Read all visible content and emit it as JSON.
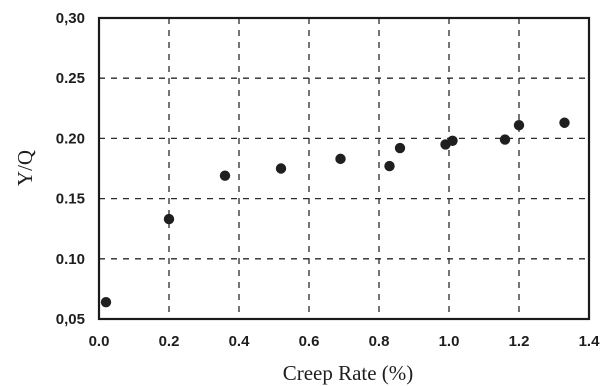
{
  "chart_data": {
    "type": "scatter",
    "xlabel": "Creep Rate (%)",
    "ylabel": "Y/Q",
    "xlim": [
      0.0,
      1.4
    ],
    "ylim": [
      0.05,
      0.3
    ],
    "xticks": [
      0.0,
      0.2,
      0.4,
      0.6,
      0.8,
      1.0,
      1.2,
      1.4
    ],
    "xtick_labels": [
      "0.0",
      "0.2",
      "0.4",
      "0.6",
      "0.8",
      "1.0",
      "1.2",
      "1.4"
    ],
    "yticks": [
      0.05,
      0.1,
      0.15,
      0.2,
      0.25,
      0.3
    ],
    "ytick_labels": [
      "0,05",
      "0.10",
      "0.15",
      "0.20",
      "0.25",
      "0,30"
    ],
    "grid": true,
    "point_color": "#1f1f1f",
    "series": [
      {
        "x": [
          0.02,
          0.2,
          0.36,
          0.52,
          0.69,
          0.83,
          0.86,
          0.99,
          1.01,
          1.16,
          1.2,
          1.33
        ],
        "y": [
          0.064,
          0.133,
          0.169,
          0.175,
          0.183,
          0.177,
          0.192,
          0.195,
          0.198,
          0.199,
          0.211,
          0.213
        ]
      }
    ]
  }
}
